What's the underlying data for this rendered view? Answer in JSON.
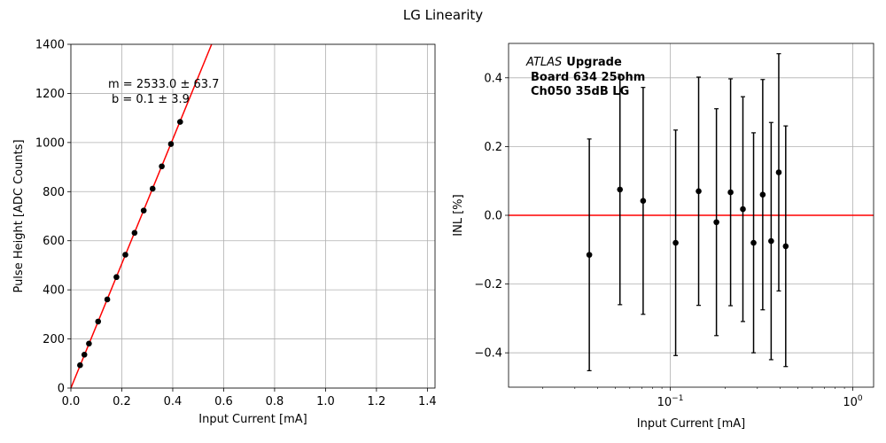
{
  "suptitle": "LG Linearity",
  "chart_data": [
    {
      "type": "scatter",
      "xlabel": "Input Current [mA]",
      "ylabel": "Pulse Height [ADC Counts]",
      "xlim": [
        0,
        1.43
      ],
      "ylim": [
        0,
        1400
      ],
      "xscale": "linear",
      "xticks": [
        "0.0",
        "0.2",
        "0.4",
        "0.6",
        "0.8",
        "1.0",
        "1.2",
        "1.4"
      ],
      "yticks": [
        "0",
        "200",
        "400",
        "600",
        "800",
        "1000",
        "1200",
        "1400"
      ],
      "grid": true,
      "points": {
        "x": [
          0.036,
          0.053,
          0.071,
          0.107,
          0.143,
          0.179,
          0.214,
          0.25,
          0.286,
          0.321,
          0.357,
          0.393,
          0.429
        ],
        "y": [
          93,
          136,
          181,
          271,
          361,
          452,
          543,
          632,
          723,
          812,
          903,
          994,
          1084
        ]
      },
      "points_color": "#000000",
      "fit": {
        "slope": 2533.0,
        "intercept": 0.1,
        "color": "#ff0000"
      },
      "annotation": {
        "line1": "m = 2533.0 ± 63.7",
        "line2": "b = 0.1 ± 3.9"
      }
    },
    {
      "type": "scatter",
      "xlabel": "Input Current [mA]",
      "ylabel": "INL [%]",
      "xlim": [
        0.013,
        1.3
      ],
      "ylim": [
        -0.5,
        0.5
      ],
      "xscale": "log",
      "xticks": [
        {
          "value": 0.1,
          "base": "10",
          "exp": "−1"
        },
        {
          "value": 1,
          "base": "10",
          "exp": "0"
        }
      ],
      "yticks": [
        {
          "value": -0.4,
          "label": "−0.4"
        },
        {
          "value": -0.2,
          "label": "−0.2"
        },
        {
          "value": 0,
          "label": "0.0"
        },
        {
          "value": 0.2,
          "label": "0.2"
        },
        {
          "value": 0.4,
          "label": "0.4"
        }
      ],
      "grid": true,
      "points": {
        "x": [
          0.036,
          0.053,
          0.071,
          0.107,
          0.143,
          0.179,
          0.214,
          0.25,
          0.286,
          0.321,
          0.357,
          0.393,
          0.429
        ],
        "y": [
          -0.115,
          0.075,
          0.042,
          -0.08,
          0.07,
          -0.02,
          0.067,
          0.018,
          -0.08,
          0.06,
          -0.075,
          0.125,
          -0.09
        ],
        "err": [
          0.337,
          0.335,
          0.33,
          0.328,
          0.332,
          0.33,
          0.33,
          0.327,
          0.32,
          0.335,
          0.345,
          0.345,
          0.35
        ]
      },
      "points_color": "#000000",
      "zero_line_color": "#ff0000",
      "annotation": {
        "italic": "ATLAS",
        "bold": "Upgrade",
        "line2": "Board 634 25ohm",
        "line3": "Ch050 35dB LG"
      }
    }
  ]
}
